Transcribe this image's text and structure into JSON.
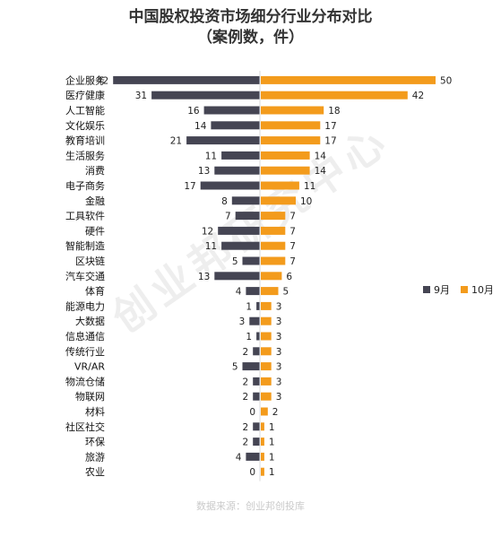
{
  "chart_data": {
    "type": "bar",
    "title": "中国股权投资市场细分行业分布对比",
    "subtitle": "（案例数，件）",
    "categories": [
      "企业服务",
      "医疗健康",
      "人工智能",
      "文化娱乐",
      "教育培训",
      "生活服务",
      "消费",
      "电子商务",
      "金融",
      "工具软件",
      "硬件",
      "智能制造",
      "区块链",
      "汽车交通",
      "体育",
      "能源电力",
      "大数据",
      "信息通信",
      "传统行业",
      "VR/AR",
      "物流仓储",
      "物联网",
      "材料",
      "社区社交",
      "环保",
      "旅游",
      "农业"
    ],
    "series": [
      {
        "name": "9月",
        "color": "#454553",
        "values": [
          42,
          31,
          16,
          14,
          21,
          11,
          13,
          17,
          8,
          7,
          12,
          11,
          5,
          13,
          4,
          1,
          3,
          1,
          2,
          5,
          2,
          2,
          0,
          2,
          2,
          4,
          0
        ]
      },
      {
        "name": "10月",
        "color": "#f39b1c",
        "values": [
          50,
          42,
          18,
          17,
          17,
          14,
          14,
          11,
          10,
          7,
          7,
          7,
          7,
          6,
          5,
          3,
          3,
          3,
          3,
          3,
          3,
          3,
          2,
          1,
          1,
          1,
          1
        ]
      }
    ],
    "orientation": "horizontal-butterfly",
    "legend_position": "right",
    "grid": false
  },
  "watermark": "创业邦研究中心",
  "source": "数据来源：创业邦创投库"
}
